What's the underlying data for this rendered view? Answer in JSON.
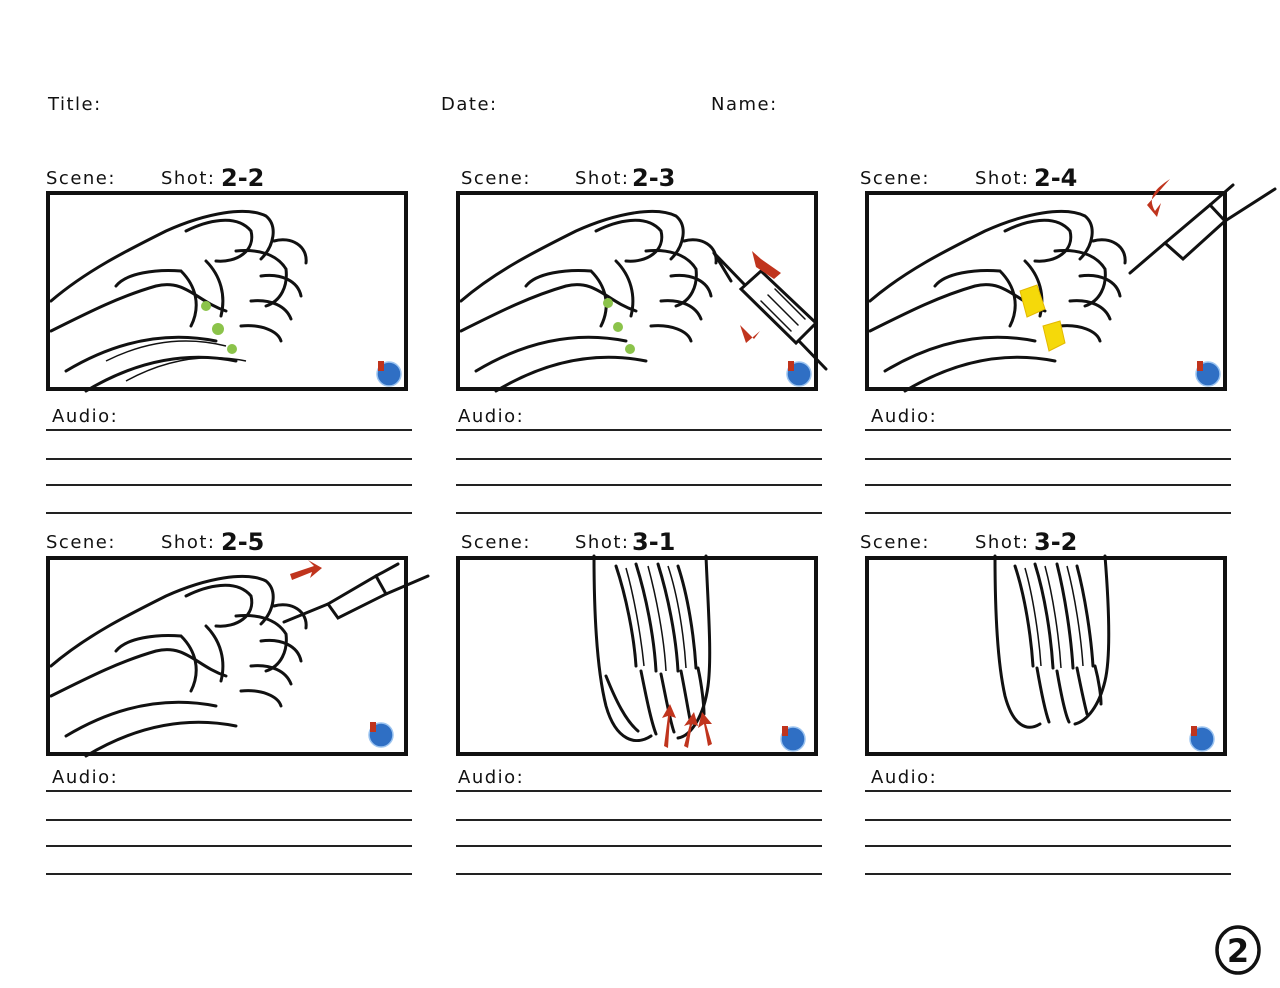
{
  "header": {
    "title_label": "Title:",
    "date_label": "Date:",
    "name_label": "Name:"
  },
  "labels": {
    "scene": "Scene:",
    "shot": "Shot:",
    "audio": "Audio:"
  },
  "panels": [
    {
      "shot": "2-2",
      "art": "foot-side",
      "tool": "none",
      "markers": "green-dots"
    },
    {
      "shot": "2-3",
      "art": "foot-side",
      "tool": "scalpel-right",
      "markers": "green-dots"
    },
    {
      "shot": "2-4",
      "art": "foot-side",
      "tool": "syringe-top",
      "markers": "yellow-patches"
    },
    {
      "shot": "2-5",
      "art": "foot-side",
      "tool": "syringe-toe",
      "markers": "none"
    },
    {
      "shot": "3-1",
      "art": "foot-top",
      "tool": "none",
      "markers": "red-arrows"
    },
    {
      "shot": "3-2",
      "art": "foot-top",
      "tool": "none",
      "markers": "none"
    }
  ],
  "page_number": "2",
  "colors": {
    "ink": "#111111",
    "green": "#8bc34a",
    "yellow": "#f5d90a",
    "red": "#c0341d",
    "logo_blue": "#2f6fc4"
  },
  "icons": {
    "logo": "globe-logo-icon"
  }
}
